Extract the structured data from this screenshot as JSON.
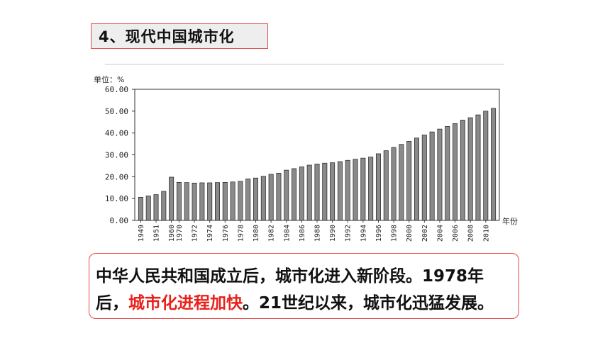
{
  "slide": {
    "title": "4、现代中国城市化",
    "caption": {
      "line1": "中华人民共和国成立后，城市化进入新阶段。1978年",
      "line2_pre": "后，",
      "line2_highlight": "城市化进程加快",
      "line2_post": "。21世纪以来，城市化迅猛发展。"
    },
    "colors": {
      "highlight": "#e8211b",
      "border": "#e84a4a",
      "bar": "#8a8a8a"
    }
  },
  "chart_data": {
    "type": "bar",
    "unit_label": "单位：%",
    "xlabel": "年份",
    "ylim": [
      0,
      60
    ],
    "yticks": [
      "0.00",
      "10.00",
      "20.00",
      "30.00",
      "40.00",
      "50.00",
      "60.00"
    ],
    "xtick_labels": [
      "1949",
      "1951",
      "1960",
      "1970",
      "1972",
      "1974",
      "1976",
      "1978",
      "1980",
      "1982",
      "1984",
      "1986",
      "1988",
      "1990",
      "1992",
      "1994",
      "1996",
      "1998",
      "2000",
      "2002",
      "2004",
      "2006",
      "2008",
      "2010"
    ],
    "categories": [
      "1949",
      "1950",
      "1951",
      "1952",
      "1960",
      "1970",
      "1971",
      "1972",
      "1973",
      "1974",
      "1975",
      "1976",
      "1977",
      "1978",
      "1979",
      "1980",
      "1981",
      "1982",
      "1983",
      "1984",
      "1985",
      "1986",
      "1987",
      "1988",
      "1989",
      "1990",
      "1991",
      "1992",
      "1993",
      "1994",
      "1995",
      "1996",
      "1997",
      "1998",
      "1999",
      "2000",
      "2001",
      "2002",
      "2003",
      "2004",
      "2005",
      "2006",
      "2007",
      "2008",
      "2009",
      "2010",
      "2011"
    ],
    "values": [
      10.6,
      11.2,
      11.8,
      13.3,
      19.8,
      17.4,
      17.3,
      17.1,
      17.2,
      17.2,
      17.3,
      17.4,
      17.6,
      17.9,
      19.0,
      19.4,
      20.2,
      21.1,
      21.6,
      23.0,
      23.7,
      24.5,
      25.3,
      25.8,
      26.2,
      26.4,
      26.9,
      27.5,
      28.0,
      28.5,
      29.0,
      30.5,
      31.9,
      33.4,
      34.8,
      36.2,
      37.7,
      39.1,
      40.5,
      41.8,
      43.0,
      44.3,
      45.9,
      47.0,
      48.3,
      50.0,
      51.3
    ]
  }
}
